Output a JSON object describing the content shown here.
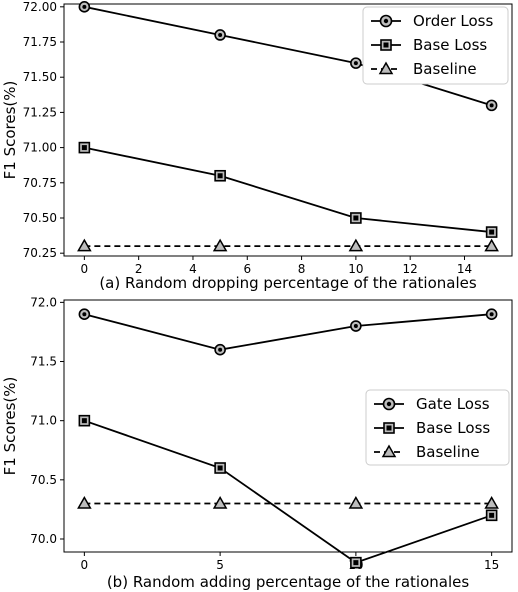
{
  "chart_data": [
    {
      "type": "line",
      "xlabel": "(a) Random dropping percentage of the rationales",
      "ylabel": "F1 Scores(%)",
      "x": [
        0,
        5,
        10,
        15
      ],
      "xlim": [
        -0.75,
        15.75
      ],
      "ylim": [
        70.23,
        72.02
      ],
      "xticks": [
        0,
        2,
        4,
        6,
        8,
        10,
        12,
        14
      ],
      "yticks": [
        70.25,
        70.5,
        70.75,
        71.0,
        71.25,
        71.5,
        71.75,
        72.0
      ],
      "ytick_labels": [
        "70.25",
        "70.50",
        "70.75",
        "71.00",
        "71.25",
        "71.50",
        "71.75",
        "72.00"
      ],
      "legend_position": "top-right",
      "series": [
        {
          "name": "Order Loss",
          "values": [
            72.0,
            71.8,
            71.6,
            71.3
          ],
          "marker": "circle",
          "dashed": false
        },
        {
          "name": "Base Loss",
          "values": [
            71.0,
            70.8,
            70.5,
            70.4
          ],
          "marker": "square",
          "dashed": false
        },
        {
          "name": "Baseline",
          "values": [
            70.3,
            70.3,
            70.3,
            70.3
          ],
          "marker": "triangle",
          "dashed": true
        }
      ]
    },
    {
      "type": "line",
      "xlabel": "(b) Random adding percentage of the rationales",
      "ylabel": "F1 Scores(%)",
      "x": [
        0,
        5,
        10,
        15
      ],
      "xlim": [
        -0.75,
        15.75
      ],
      "ylim": [
        69.89,
        72.02
      ],
      "xticks": [
        0,
        5,
        10,
        15
      ],
      "yticks": [
        70.0,
        70.5,
        71.0,
        71.5,
        72.0
      ],
      "ytick_labels": [
        "70.0",
        "70.5",
        "71.0",
        "71.5",
        "72.0"
      ],
      "legend_position": "center-right",
      "series": [
        {
          "name": "Gate Loss",
          "values": [
            71.9,
            71.6,
            71.8,
            71.9
          ],
          "marker": "circle",
          "dashed": false
        },
        {
          "name": "Base Loss",
          "values": [
            71.0,
            70.6,
            69.8,
            70.2
          ],
          "marker": "square",
          "dashed": false
        },
        {
          "name": "Baseline",
          "values": [
            70.3,
            70.3,
            70.3,
            70.3
          ],
          "marker": "triangle",
          "dashed": true
        }
      ]
    }
  ]
}
